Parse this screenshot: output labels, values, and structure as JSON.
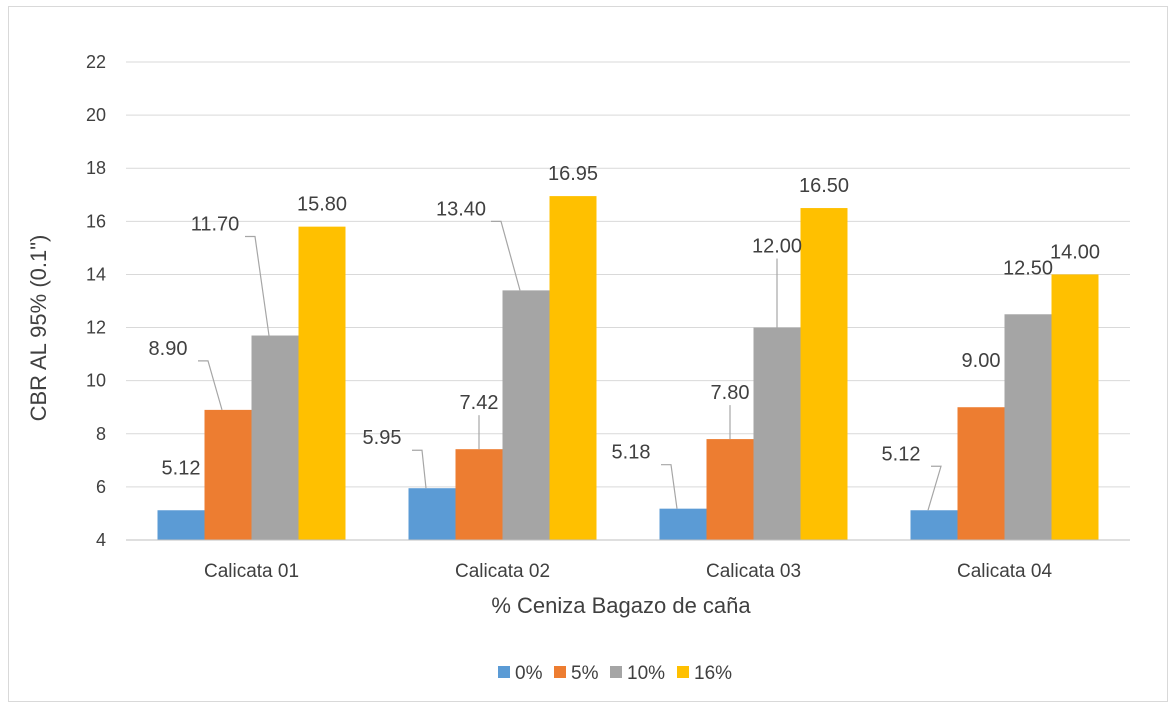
{
  "chart_data": {
    "type": "bar",
    "title": "",
    "xlabel": "% Ceniza Bagazo de caña",
    "ylabel": "CBR AL 95% (0.1\")",
    "ylim": [
      4,
      22
    ],
    "yticks": [
      "4",
      "6",
      "8",
      "10",
      "12",
      "14",
      "16",
      "18",
      "20",
      "22"
    ],
    "grid": true,
    "legend_position": "bottom",
    "categories": [
      "Calicata 01",
      "Calicata 02",
      "Calicata 03",
      "Calicata 04"
    ],
    "series": [
      {
        "name": "0%",
        "color": "#5b9bd5",
        "values": [
          5.12,
          5.95,
          5.18,
          5.12
        ],
        "labels": [
          "5.12",
          "5.95",
          "5.18",
          "5.12"
        ]
      },
      {
        "name": "5%",
        "color": "#ed7d31",
        "values": [
          8.9,
          7.42,
          7.8,
          9.0
        ],
        "labels": [
          "8.90",
          "7.42",
          "7.80",
          "9.00"
        ]
      },
      {
        "name": "10%",
        "color": "#a5a5a5",
        "values": [
          11.7,
          13.4,
          12.0,
          12.5
        ],
        "labels": [
          "11.70",
          "13.40",
          "12.00",
          "12.50"
        ]
      },
      {
        "name": "16%",
        "color": "#ffc000",
        "values": [
          15.8,
          16.95,
          16.5,
          14.0
        ],
        "labels": [
          "15.80",
          "16.95",
          "16.50",
          "14.00"
        ]
      }
    ]
  }
}
